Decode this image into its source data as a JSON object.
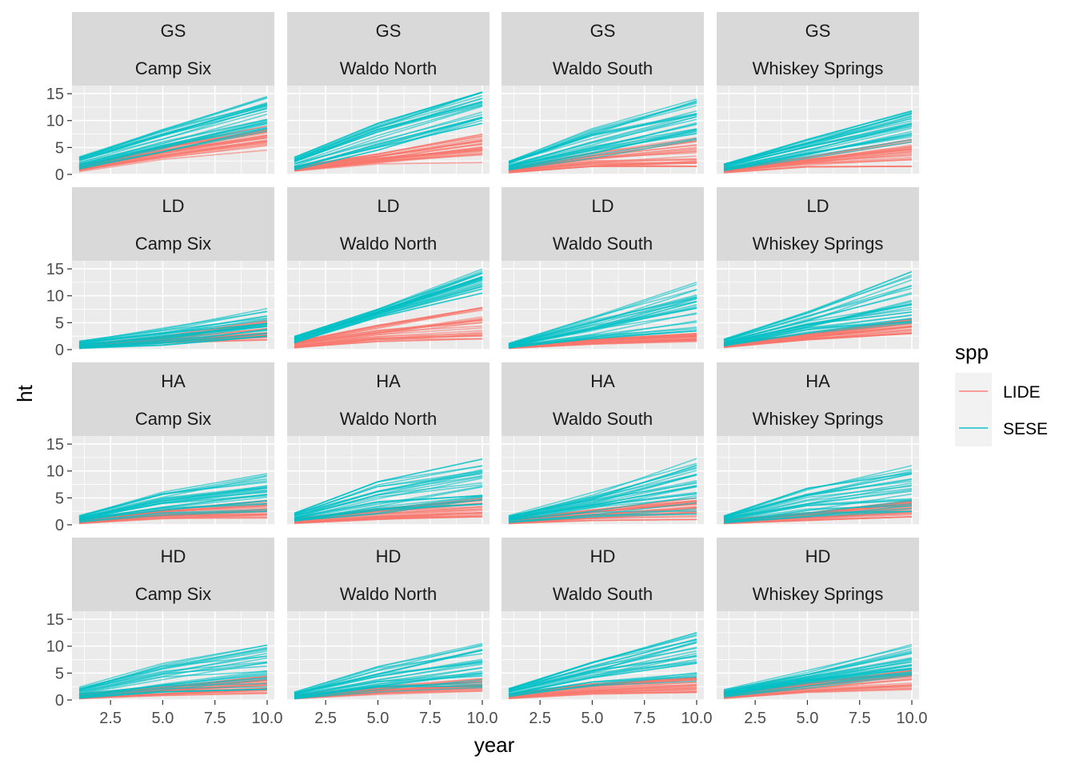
{
  "chart_data": {
    "type": "line",
    "facet_layout": {
      "rows": 4,
      "cols": 4
    },
    "xlabel": "year",
    "ylabel": "ht",
    "xlim": [
      1,
      10
    ],
    "ylim": [
      0,
      16.5
    ],
    "x_ticks": [
      2.5,
      5.0,
      7.5,
      10.0
    ],
    "x_tick_labels": [
      "2.5",
      "5.0",
      "7.5",
      "10.0"
    ],
    "y_ticks": [
      0,
      5,
      10,
      15
    ],
    "y_tick_labels": [
      "0",
      "5",
      "10",
      "15"
    ],
    "grid": true,
    "legend": {
      "title": "spp",
      "position": "right",
      "entries": [
        {
          "name": "LIDE",
          "color": "#F8766D"
        },
        {
          "name": "SESE",
          "color": "#00BFC4"
        }
      ]
    },
    "x": [
      1,
      5,
      10
    ],
    "panels": [
      {
        "strip_top": "GS",
        "strip_bottom": "Camp Six",
        "series": [
          {
            "name": "LIDE",
            "low": [
              0.5,
              2.8,
              4.5
            ],
            "high": [
              1.6,
              5.2,
              9.0
            ]
          },
          {
            "name": "SESE",
            "low": [
              1.0,
              4.2,
              8.0
            ],
            "high": [
              3.5,
              8.5,
              14.5
            ]
          }
        ]
      },
      {
        "strip_top": "GS",
        "strip_bottom": "Waldo North",
        "series": [
          {
            "name": "LIDE",
            "low": [
              0.4,
              1.8,
              2.2
            ],
            "high": [
              1.5,
              3.8,
              7.5
            ]
          },
          {
            "name": "SESE",
            "low": [
              0.8,
              4.5,
              9.5
            ],
            "high": [
              3.2,
              9.5,
              15.3
            ]
          }
        ]
      },
      {
        "strip_top": "GS",
        "strip_bottom": "Waldo South",
        "series": [
          {
            "name": "LIDE",
            "low": [
              0.3,
              1.5,
              1.5
            ],
            "high": [
              1.2,
              4.0,
              6.8
            ]
          },
          {
            "name": "SESE",
            "low": [
              0.8,
              3.0,
              6.5
            ],
            "high": [
              2.5,
              8.5,
              14.0
            ]
          }
        ]
      },
      {
        "strip_top": "GS",
        "strip_bottom": "Whiskey Springs",
        "series": [
          {
            "name": "LIDE",
            "low": [
              0.3,
              1.4,
              1.5
            ],
            "high": [
              1.2,
              3.2,
              6.5
            ]
          },
          {
            "name": "SESE",
            "low": [
              0.6,
              3.0,
              6.0
            ],
            "high": [
              2.0,
              6.5,
              11.8
            ]
          }
        ]
      },
      {
        "strip_top": "LD",
        "strip_bottom": "Camp Six",
        "series": [
          {
            "name": "LIDE",
            "low": [
              0.2,
              1.2,
              1.8
            ],
            "high": [
              1.0,
              2.5,
              5.5
            ]
          },
          {
            "name": "SESE",
            "low": [
              0.2,
              0.8,
              2.5
            ],
            "high": [
              1.8,
              4.5,
              7.8
            ]
          }
        ]
      },
      {
        "strip_top": "LD",
        "strip_bottom": "Waldo North",
        "series": [
          {
            "name": "LIDE",
            "low": [
              0.3,
              1.5,
              2.0
            ],
            "high": [
              1.5,
              4.5,
              7.8
            ]
          },
          {
            "name": "SESE",
            "low": [
              1.2,
              6.0,
              10.5
            ],
            "high": [
              2.5,
              7.5,
              15.0
            ]
          }
        ]
      },
      {
        "strip_top": "LD",
        "strip_bottom": "Waldo South",
        "series": [
          {
            "name": "LIDE",
            "low": [
              0.2,
              1.0,
              1.5
            ],
            "high": [
              0.8,
              2.0,
              3.0
            ]
          },
          {
            "name": "SESE",
            "low": [
              0.3,
              2.0,
              3.5
            ],
            "high": [
              1.2,
              6.0,
              12.5
            ]
          }
        ]
      },
      {
        "strip_top": "LD",
        "strip_bottom": "Whiskey Springs",
        "series": [
          {
            "name": "LIDE",
            "low": [
              0.4,
              1.8,
              3.0
            ],
            "high": [
              1.2,
              3.0,
              6.0
            ]
          },
          {
            "name": "SESE",
            "low": [
              0.5,
              3.0,
              4.0
            ],
            "high": [
              2.0,
              7.0,
              14.5
            ]
          }
        ]
      },
      {
        "strip_top": "HA",
        "strip_bottom": "Camp Six",
        "series": [
          {
            "name": "LIDE",
            "low": [
              0.2,
              1.0,
              1.2
            ],
            "high": [
              1.0,
              2.8,
              4.5
            ]
          },
          {
            "name": "SESE",
            "low": [
              0.5,
              1.8,
              2.5
            ],
            "high": [
              1.8,
              6.2,
              9.5
            ]
          }
        ]
      },
      {
        "strip_top": "HA",
        "strip_bottom": "Waldo North",
        "series": [
          {
            "name": "LIDE",
            "low": [
              0.2,
              1.0,
              1.5
            ],
            "high": [
              1.2,
              3.0,
              5.0
            ]
          },
          {
            "name": "SESE",
            "low": [
              0.6,
              2.0,
              3.5
            ],
            "high": [
              2.2,
              8.0,
              12.3
            ]
          }
        ]
      },
      {
        "strip_top": "HA",
        "strip_bottom": "Waldo South",
        "series": [
          {
            "name": "LIDE",
            "low": [
              0.2,
              0.8,
              1.0
            ],
            "high": [
              1.0,
              2.8,
              5.0
            ]
          },
          {
            "name": "SESE",
            "low": [
              0.4,
              1.5,
              2.0
            ],
            "high": [
              1.8,
              6.0,
              12.5
            ]
          }
        ]
      },
      {
        "strip_top": "HA",
        "strip_bottom": "Whiskey Springs",
        "series": [
          {
            "name": "LIDE",
            "low": [
              0.2,
              0.8,
              1.5
            ],
            "high": [
              1.0,
              2.2,
              4.5
            ]
          },
          {
            "name": "SESE",
            "low": [
              0.3,
              1.5,
              2.5
            ],
            "high": [
              1.8,
              7.0,
              11.0
            ]
          }
        ]
      },
      {
        "strip_top": "HD",
        "strip_bottom": "Camp Six",
        "series": [
          {
            "name": "LIDE",
            "low": [
              0.2,
              0.8,
              1.2
            ],
            "high": [
              1.2,
              2.5,
              4.5
            ]
          },
          {
            "name": "SESE",
            "low": [
              0.3,
              1.5,
              2.0
            ],
            "high": [
              2.5,
              6.8,
              10.2
            ]
          }
        ]
      },
      {
        "strip_top": "HD",
        "strip_bottom": "Waldo North",
        "series": [
          {
            "name": "LIDE",
            "low": [
              0.2,
              1.0,
              1.5
            ],
            "high": [
              1.0,
              2.5,
              4.0
            ]
          },
          {
            "name": "SESE",
            "low": [
              0.2,
              1.5,
              2.0
            ],
            "high": [
              1.5,
              6.2,
              10.5
            ]
          }
        ]
      },
      {
        "strip_top": "HD",
        "strip_bottom": "Waldo South",
        "series": [
          {
            "name": "LIDE",
            "low": [
              0.2,
              1.0,
              1.2
            ],
            "high": [
              1.2,
              3.0,
              4.2
            ]
          },
          {
            "name": "SESE",
            "low": [
              0.5,
              2.0,
              3.0
            ],
            "high": [
              2.2,
              7.0,
              12.5
            ]
          }
        ]
      },
      {
        "strip_top": "HD",
        "strip_bottom": "Whiskey Springs",
        "series": [
          {
            "name": "LIDE",
            "low": [
              0.2,
              1.2,
              1.8
            ],
            "high": [
              1.3,
              3.2,
              5.5
            ]
          },
          {
            "name": "SESE",
            "low": [
              0.5,
              2.2,
              3.5
            ],
            "high": [
              2.0,
              5.5,
              10.3
            ]
          }
        ]
      }
    ]
  }
}
